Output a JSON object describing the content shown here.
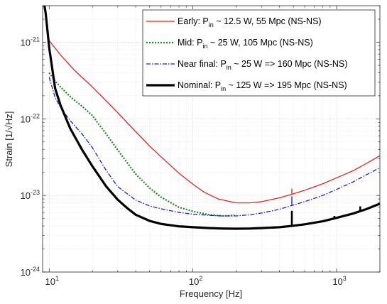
{
  "chart_data": {
    "type": "line",
    "xscale": "log",
    "yscale": "log",
    "xlim": [
      9,
      2000
    ],
    "ylim": [
      1e-24,
      3e-21
    ],
    "xlabel": "Frequency [Hz]",
    "ylabel": "Strain [1/√Hz]",
    "grid": true,
    "legend_position": "top-right",
    "x_ticks": [
      {
        "value": 10,
        "base": "10",
        "exp": "1"
      },
      {
        "value": 100,
        "base": "10",
        "exp": "2"
      },
      {
        "value": 1000,
        "base": "10",
        "exp": "3"
      }
    ],
    "y_ticks": [
      {
        "value": 1e-24,
        "base": "10",
        "exp": "-24"
      },
      {
        "value": 1e-23,
        "base": "10",
        "exp": "-23"
      },
      {
        "value": 1e-22,
        "base": "10",
        "exp": "-22"
      },
      {
        "value": 1e-21,
        "base": "10",
        "exp": "-21"
      }
    ],
    "series": [
      {
        "key": "early",
        "label_main": "Early: P",
        "label_sub": "in",
        "label_rest": " ~ 12.5 W, 55 Mpc (NS-NS)",
        "color": "#e8241f",
        "dash": "",
        "width": 1.3,
        "x": [
          10,
          12,
          15,
          20,
          25,
          30,
          40,
          50,
          60,
          80,
          100,
          120,
          150,
          200,
          250,
          300,
          400,
          500,
          600,
          800,
          1000,
          1300,
          1600,
          2000
        ],
        "y": [
          1.05e-21,
          6.8e-22,
          4.3e-22,
          2.6e-22,
          1.7e-22,
          1.2e-22,
          6.8e-23,
          4.4e-23,
          3.2e-23,
          1.95e-23,
          1.4e-23,
          1.1e-23,
          9e-24,
          8e-24,
          8e-24,
          8.3e-24,
          9.3e-24,
          1.05e-23,
          1.17e-23,
          1.42e-23,
          1.7e-23,
          2.1e-23,
          2.6e-23,
          3.3e-23
        ],
        "lines": [
          {
            "x": 488,
            "y1": 1.05e-23,
            "y2": 1.22e-23
          }
        ]
      },
      {
        "key": "mid",
        "label_main": "Mid: P",
        "label_sub": "in",
        "label_rest": " ~ 25 W, 105 Mpc (NS-NS)",
        "color": "#1b8c1b",
        "dash": "2,2",
        "width": 2.2,
        "x": [
          10,
          11,
          12,
          14,
          17,
          20,
          25,
          30,
          40,
          50,
          60,
          80,
          100,
          130,
          160,
          200
        ],
        "y": [
          4e-22,
          3.1e-22,
          2.6e-22,
          1.95e-22,
          1.45e-22,
          1.1e-22,
          6.3e-23,
          3.9e-23,
          1.9e-23,
          1.25e-23,
          9.5e-24,
          7e-24,
          6.2e-24,
          5.6e-24,
          5.4e-24,
          5.5e-24
        ],
        "lines": []
      },
      {
        "key": "near",
        "label_main": "Near final: P",
        "label_sub": "in",
        "label_rest": " ~ 25 W => 160 Mpc (NS-NS)",
        "color": "#1d1fd6",
        "dash": "6,2,1.5,2",
        "width": 1.3,
        "x": [
          10,
          11,
          12,
          14,
          17,
          20,
          25,
          30,
          40,
          50,
          60,
          80,
          100,
          130,
          160,
          200,
          250,
          300,
          400,
          500,
          600,
          800,
          1000,
          1300,
          1600,
          2000
        ],
        "y": [
          3.5e-22,
          1.9e-22,
          1.4e-22,
          9.5e-23,
          6.3e-23,
          4.2e-23,
          2.1e-23,
          1.3e-23,
          8.7e-24,
          7.3e-24,
          6.7e-24,
          6e-24,
          5.7e-24,
          5.5e-24,
          5.4e-24,
          5.4e-24,
          5.6e-24,
          5.9e-24,
          6.6e-24,
          7.5e-24,
          8.3e-24,
          1e-23,
          1.2e-23,
          1.5e-23,
          1.85e-23,
          2.3e-23
        ],
        "lines": [
          {
            "x": 488,
            "y1": 7.5e-24,
            "y2": 9.7e-24
          }
        ]
      },
      {
        "key": "nominal",
        "label_main": "Nominal: P",
        "label_sub": "in",
        "label_rest": " ~ 125 W => 195 Mpc (NS-NS)",
        "color": "#000000",
        "dash": "",
        "width": 3.2,
        "x": [
          9.2,
          9.45,
          9.7,
          10,
          11,
          12,
          14,
          17,
          20,
          25,
          30,
          35,
          40,
          50,
          60,
          80,
          100,
          130,
          160,
          200,
          250,
          300,
          400,
          488,
          600,
          800,
          1000,
          1300,
          1600,
          2000
        ],
        "y": [
          3.3e-21,
          2.4e-21,
          1.5e-21,
          8.5e-22,
          2.5e-22,
          1.5e-22,
          7.5e-23,
          3.9e-23,
          2.4e-23,
          1.3e-23,
          8.8e-24,
          6.8e-24,
          5.6e-24,
          4.65e-24,
          4.25e-24,
          3.95e-24,
          3.85e-24,
          3.75e-24,
          3.7e-24,
          3.68e-24,
          3.7e-24,
          3.75e-24,
          3.85e-24,
          4e-24,
          4.2e-24,
          4.6e-24,
          5.1e-24,
          5.8e-24,
          6.6e-24,
          7.8e-24
        ],
        "lines": [
          {
            "x": 488,
            "y1": 4e-24,
            "y2": 6.3e-24
          },
          {
            "x": 1460,
            "y1": 6.3e-24,
            "y2": 7.2e-24
          },
          {
            "x": 965,
            "y1": 5.1e-24,
            "y2": 5.4e-24
          }
        ]
      }
    ]
  }
}
